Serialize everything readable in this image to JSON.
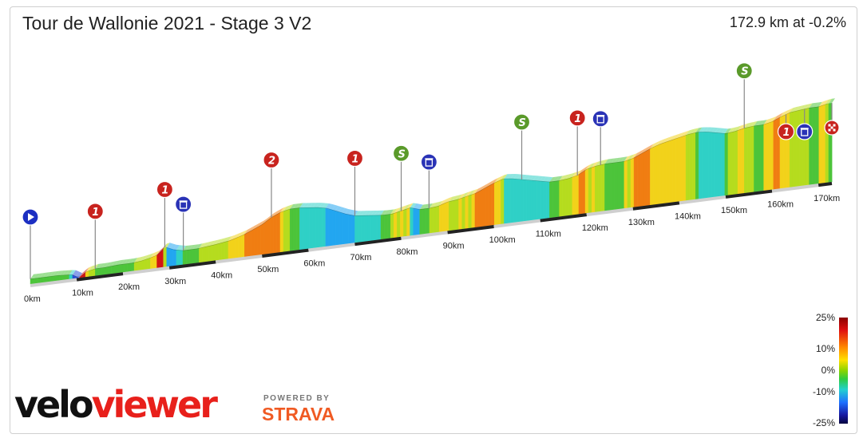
{
  "title": "Tour de Wallonie 2021 - Stage 3 V2",
  "summary": "172.9 km at -0.2%",
  "branding": {
    "logo_velo": "velo",
    "logo_viewer": "viewer",
    "powered_by": "POWERED BY",
    "strava": "STRAVA"
  },
  "gradient_scale": {
    "labels": [
      "25%",
      "10%",
      "0%",
      "-10%",
      "-25%"
    ],
    "colors": [
      "#b30000",
      "#e60000",
      "#ff6600",
      "#ffcc00",
      "#c8e000",
      "#2ecc40",
      "#22c8d0",
      "#1e90ff",
      "#1a1aa8",
      "#0a0a60"
    ]
  },
  "chart_data": {
    "type": "area",
    "title": "Tour de Wallonie 2021 - Stage 3 V2",
    "x_unit": "km",
    "x_ticks": [
      "0km",
      "10km",
      "20km",
      "30km",
      "40km",
      "50km",
      "60km",
      "70km",
      "80km",
      "90km",
      "100km",
      "110km",
      "120km",
      "130km",
      "140km",
      "150km",
      "160km",
      "170km"
    ],
    "x_tick_values": [
      0,
      10,
      20,
      30,
      40,
      50,
      60,
      70,
      80,
      90,
      100,
      110,
      120,
      130,
      140,
      150,
      160,
      170
    ],
    "total_distance": 172.9,
    "profile_relative": [
      [
        0,
        0.05
      ],
      [
        3,
        0.05
      ],
      [
        6,
        0.05
      ],
      [
        9,
        0.04
      ],
      [
        10.5,
        0.0
      ],
      [
        12,
        0.05
      ],
      [
        14,
        0.07
      ],
      [
        16,
        0.07
      ],
      [
        19,
        0.08
      ],
      [
        22,
        0.08
      ],
      [
        24,
        0.09
      ],
      [
        26,
        0.11
      ],
      [
        27.5,
        0.13
      ],
      [
        29,
        0.2
      ],
      [
        31,
        0.16
      ],
      [
        33,
        0.14
      ],
      [
        36,
        0.14
      ],
      [
        38,
        0.15
      ],
      [
        40,
        0.16
      ],
      [
        43,
        0.18
      ],
      [
        46,
        0.22
      ],
      [
        48,
        0.26
      ],
      [
        50,
        0.3
      ],
      [
        52,
        0.36
      ],
      [
        54,
        0.4
      ],
      [
        56,
        0.42
      ],
      [
        58,
        0.42
      ],
      [
        60,
        0.41
      ],
      [
        62,
        0.4
      ],
      [
        64,
        0.38
      ],
      [
        66,
        0.34
      ],
      [
        68,
        0.3
      ],
      [
        70,
        0.27
      ],
      [
        72,
        0.26
      ],
      [
        74,
        0.25
      ],
      [
        76,
        0.24
      ],
      [
        78,
        0.24
      ],
      [
        80,
        0.26
      ],
      [
        82,
        0.28
      ],
      [
        84,
        0.25
      ],
      [
        86,
        0.25
      ],
      [
        88,
        0.26
      ],
      [
        90,
        0.29
      ],
      [
        92,
        0.3
      ],
      [
        94,
        0.32
      ],
      [
        96,
        0.34
      ],
      [
        98,
        0.38
      ],
      [
        100,
        0.42
      ],
      [
        102,
        0.45
      ],
      [
        104,
        0.44
      ],
      [
        106,
        0.42
      ],
      [
        108,
        0.4
      ],
      [
        110,
        0.38
      ],
      [
        112,
        0.36
      ],
      [
        114,
        0.36
      ],
      [
        116,
        0.37
      ],
      [
        118,
        0.39
      ],
      [
        120,
        0.44
      ],
      [
        122,
        0.46
      ],
      [
        124,
        0.47
      ],
      [
        126,
        0.47
      ],
      [
        128,
        0.47
      ],
      [
        130,
        0.49
      ],
      [
        132,
        0.53
      ],
      [
        134,
        0.57
      ],
      [
        136,
        0.6
      ],
      [
        138,
        0.62
      ],
      [
        140,
        0.64
      ],
      [
        142,
        0.66
      ],
      [
        144,
        0.67
      ],
      [
        146,
        0.66
      ],
      [
        148,
        0.64
      ],
      [
        150,
        0.62
      ],
      [
        152,
        0.63
      ],
      [
        154,
        0.65
      ],
      [
        156,
        0.66
      ],
      [
        158,
        0.66
      ],
      [
        160,
        0.68
      ],
      [
        162,
        0.72
      ],
      [
        164,
        0.75
      ],
      [
        166,
        0.76
      ],
      [
        168,
        0.77
      ],
      [
        170,
        0.77
      ],
      [
        172,
        0.79
      ],
      [
        172.9,
        0.79
      ]
    ],
    "markers": [
      {
        "km": 0,
        "type": "start",
        "label": ""
      },
      {
        "km": 14,
        "type": "climb-cat",
        "label": "1"
      },
      {
        "km": 29,
        "type": "climb-cat",
        "label": "1"
      },
      {
        "km": 33,
        "type": "feed",
        "label": ""
      },
      {
        "km": 52,
        "type": "climb-cat",
        "label": "2"
      },
      {
        "km": 70,
        "type": "climb-cat",
        "label": "1"
      },
      {
        "km": 80,
        "type": "sprint",
        "label": "S"
      },
      {
        "km": 86,
        "type": "feed",
        "label": ""
      },
      {
        "km": 106,
        "type": "sprint",
        "label": "S"
      },
      {
        "km": 118,
        "type": "climb-cat",
        "label": "1"
      },
      {
        "km": 123,
        "type": "feed",
        "label": ""
      },
      {
        "km": 154,
        "type": "sprint",
        "label": "S"
      },
      {
        "km": 163,
        "type": "climb-cat",
        "label": "1"
      },
      {
        "km": 167,
        "type": "feed",
        "label": ""
      },
      {
        "km": 172.9,
        "type": "finish",
        "label": ""
      }
    ]
  }
}
